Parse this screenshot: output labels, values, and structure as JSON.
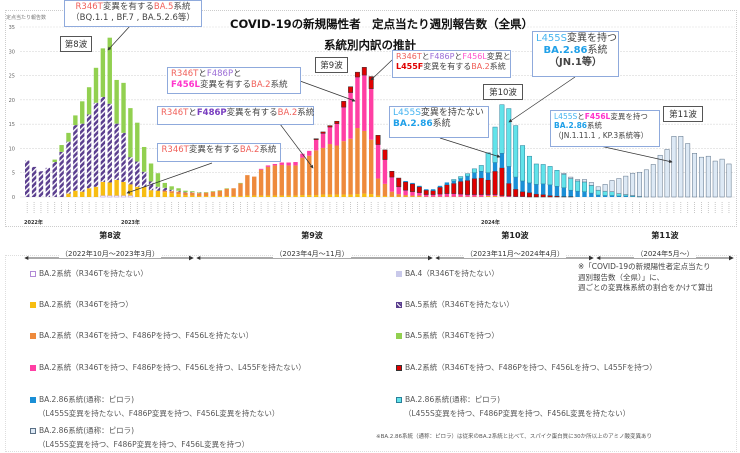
{
  "chart_data": {
    "type": "bar",
    "stacked": true,
    "title": "COVID-19の新規陽性者　定点当たり週別報告数（全県）",
    "subtitle": "系統別内訳の推計",
    "ylabel": "定点当たり報告数",
    "ylim": [
      0,
      35
    ],
    "yticks": [
      0,
      5,
      10,
      15,
      20,
      25,
      30,
      35
    ],
    "grid": true,
    "weeks": 103,
    "year_labels": [
      {
        "text": "2022年",
        "week": 1
      },
      {
        "text": "2023年",
        "week": 15
      },
      {
        "text": "2024年",
        "week": 68
      }
    ],
    "series": [
      {
        "key": "ba2_no",
        "name": "BA.2系統（R346Tを持たない）",
        "color": "#ffffff",
        "stroke": "#b18ad6",
        "start_week": 12,
        "values": [
          0.3,
          0.3,
          0.3,
          0.3,
          0.3
        ]
      },
      {
        "key": "ba4",
        "name": "BA.4（R346Tを持たない）",
        "color": "#c9c9ea",
        "start_week": 1,
        "values": []
      },
      {
        "key": "ba2_r346t",
        "name": "BA.2系統（R346Tを持つ）",
        "color": "#f7bd12",
        "start_week": 7,
        "values": [
          0.7,
          1.3,
          1.1,
          1.8,
          2.1,
          2.8,
          2.7,
          3.2,
          2.8,
          2.3,
          2.1,
          2.1,
          1.4,
          1.3,
          1.0,
          0.8,
          0.6,
          0.4,
          0.3,
          0.2,
          0.2,
          0.2,
          0.2,
          0.2,
          0.2,
          0.2,
          0.3,
          0.3,
          0.3,
          0.3,
          0.3,
          0.3,
          0.3,
          0.3,
          0.4,
          0.4,
          0.4,
          0.5,
          0.5,
          0.5,
          0.5,
          0.5,
          0.6,
          0.7,
          0.6,
          0.3,
          0.2,
          0.1,
          0.1,
          0.1,
          0.1,
          0.1,
          0,
          0,
          0,
          0,
          0,
          0,
          0,
          0,
          0,
          0.1,
          0.1
        ]
      },
      {
        "key": "ba2_f486p",
        "name": "BA.2系統（R346Tを持つ、F486Pを持つ、F456Lを持たない）",
        "color": "#ee8a3c",
        "start_week": 21,
        "values": [
          0.3,
          0.4,
          0.5,
          0.5,
          0.6,
          0.6,
          0.7,
          0.9,
          1.1,
          1.5,
          1.6,
          2.6,
          4.2,
          3.9,
          5.3,
          5.9,
          6.2,
          6.3,
          6.2,
          6.2,
          7.7,
          8.1,
          9.2,
          9.6,
          10.4,
          10.1,
          11.0,
          11.5,
          13.6,
          12.9,
          11.2,
          3.5,
          2.5,
          1.0,
          0.5,
          0.3,
          0.2,
          0.2,
          0.1,
          0.1,
          0.1,
          0.1,
          0.1,
          0.1,
          0.1,
          0.1,
          0.1,
          0.1,
          0.1,
          0.1
        ]
      },
      {
        "key": "ba2_f456l",
        "name": "BA.2系統（R346Tを持つ、F486Pを持つ、F456Lを持つ、L455Fを持たない）",
        "color": "#ff3fa4",
        "start_week": 35,
        "values": [
          0.2,
          0.3,
          0.3,
          0.5,
          0.6,
          0.7,
          0.8,
          1.0,
          2.2,
          3.0,
          3.5,
          4.5,
          7.0,
          9.5,
          10.5,
          11.5,
          10.5,
          7.0,
          5.0,
          3.0,
          1.5,
          1.0,
          0.8,
          0.6,
          0.4,
          0.4,
          0.5,
          0.6,
          0.6,
          0.5,
          0.4,
          0.4,
          0.4,
          0.3,
          0.3,
          0.2,
          0.2,
          0.1,
          0.1
        ]
      },
      {
        "key": "ba2_l455f",
        "name": "BA.2系統（R346Tを持つ、F486Pを持つ、F456Lを持つ、L455Fを持つ）",
        "color": "#e00000",
        "stroke": "#333333",
        "start_week": 43,
        "values": [
          0.2,
          0.3,
          0.3,
          0.5,
          1.2,
          1.2,
          1.0,
          1.6,
          2.5,
          1.9,
          2.0,
          1.2,
          1.8,
          1.7,
          1.6,
          1.2,
          0.9,
          0.8,
          1.4,
          1.8,
          2.1,
          2.6,
          2.9,
          3.3,
          3.4,
          3.0,
          4.8,
          5.7,
          2.6,
          1.5,
          1.0,
          0.9,
          0.6,
          0.5,
          0.3,
          0.2,
          0.1,
          0.1
        ]
      },
      {
        "key": "ba286_no_l455s",
        "name": "BA.2.86系統(通称：ピロラ)",
        "detail": "（L455S変異を持たない、F486P変異を持つ、F456L変異を持たない）",
        "color": "#1a8fd6",
        "start_week": 56,
        "values": [
          0.2,
          0.2,
          0.2,
          0.2,
          0.3,
          0.3,
          0.5,
          0.5,
          0.6,
          0.9,
          1.2,
          1.4,
          1.5,
          1.8,
          3.0,
          3.5,
          2.5,
          2.2,
          2.0,
          2.0,
          2.2,
          2.2,
          2.0,
          1.8,
          1.3,
          1.2,
          1.1,
          0.8,
          0.4,
          0.3,
          0.3,
          0.2,
          0.2,
          0.1
        ]
      },
      {
        "key": "ba286_l455s",
        "name": "BA.2.86系統(通称：ピロラ)",
        "detail": "（L455S変異を持つ、F486P変異を持つ、F456L変異を持たない）",
        "color": "#62e3ea",
        "stroke": "#2a7f9a",
        "start_week": 63,
        "values": [
          0.3,
          0.4,
          0.5,
          0.8,
          1.2,
          4.1,
          7.3,
          10.0,
          11.9,
          10.6,
          7.3,
          5.5,
          4.2,
          4.0,
          3.8,
          3.3,
          2.8,
          2.4,
          2.1,
          2.0,
          1.6,
          1.0,
          0.9,
          0.8,
          0.5,
          0.3,
          0.2,
          0.1
        ]
      },
      {
        "key": "ba286_l455s_f456l",
        "name": "BA.2.86系統(通称：ピロラ)",
        "detail": "（L455S変異を持つ、F486P変異を持つ、F456L変異を持つ）",
        "color": "#dde9f5",
        "stroke": "#5a6f85",
        "start_week": 79,
        "values": [
          0.2,
          0.3,
          0.3,
          0.5,
          0.6,
          0.7,
          1.4,
          2.3,
          3.1,
          3.8,
          4.6,
          5.0,
          5.6,
          6.7,
          8.6,
          9.8,
          12.5,
          12.5,
          11.0,
          9.0,
          8.2,
          8.4,
          7.4,
          7.8,
          6.8
        ]
      },
      {
        "key": "ba5_no",
        "name": "BA.5系統（R346Tを持たない）",
        "color": "#5b3f8f",
        "hatched": true,
        "start_week": 1,
        "values": [
          7.5,
          6.2,
          5.3,
          6.0,
          7.2,
          9.3,
          10.7,
          13.5,
          14.0,
          15.2,
          17.3,
          17.5,
          16.2,
          11.6,
          10.1,
          5.6,
          5.2,
          3.1,
          1.8,
          0.8,
          0.6,
          0.3,
          0.2,
          0.1,
          0.1,
          0.1
        ]
      },
      {
        "key": "ba5_r346t",
        "name": "BA.5系統（R346Tを持つ）",
        "color": "#92d050",
        "start_week": 5,
        "values": [
          0.5,
          1.4,
          1.8,
          2.0,
          4.6,
          5.6,
          7.2,
          10.0,
          13.6,
          9.0,
          10.3,
          10.1,
          8.0,
          5.1,
          3.7,
          2.8,
          1.0,
          0.7,
          0.5,
          0.3,
          0.2,
          0.1,
          0.1,
          0.1,
          0.1,
          0.1,
          0,
          0.1
        ]
      }
    ]
  },
  "annotations": {
    "ba5_r346t": [
      [
        {
          "t": "R346T",
          "c": "#f0605a"
        },
        {
          "t": "変異を有する",
          "c": "#444"
        },
        {
          "t": "BA.5",
          "c": "#f0605a"
        },
        {
          "t": "系統",
          "c": "#444"
        }
      ],
      [
        {
          "t": "（BQ.1.1 , BF.7 , BA.5.2.6等）",
          "c": "#444"
        }
      ]
    ],
    "f456l": [
      [
        {
          "t": "R346T",
          "c": "#f0605a"
        },
        {
          "t": "と",
          "c": "#444"
        },
        {
          "t": "F486P",
          "c": "#9b6bd6"
        },
        {
          "t": "と",
          "c": "#444"
        }
      ],
      [
        {
          "t": "F456L",
          "c": "#ff33cc",
          "b": true
        },
        {
          "t": "変異を有する",
          "c": "#444"
        },
        {
          "t": "BA.2",
          "c": "#f0605a"
        },
        {
          "t": "系統",
          "c": "#444"
        }
      ]
    ],
    "f486p": [
      [
        {
          "t": "R346T",
          "c": "#f0605a"
        },
        {
          "t": "と",
          "c": "#444"
        },
        {
          "t": "F486P",
          "c": "#7a3fc0",
          "b": true
        },
        {
          "t": "変異を有する",
          "c": "#444"
        },
        {
          "t": "BA.2",
          "c": "#f0605a"
        },
        {
          "t": "系統",
          "c": "#444"
        }
      ]
    ],
    "ba2_r346t": [
      [
        {
          "t": "R346T",
          "c": "#f0605a"
        },
        {
          "t": "変異を有する",
          "c": "#444"
        },
        {
          "t": "BA.2",
          "c": "#f0605a"
        },
        {
          "t": "系統",
          "c": "#444"
        }
      ]
    ],
    "l455f": [
      [
        {
          "t": "R346T",
          "c": "#f0605a"
        },
        {
          "t": "と",
          "c": "#444"
        },
        {
          "t": "F486P",
          "c": "#9b6bd6"
        },
        {
          "t": "と",
          "c": "#444"
        },
        {
          "t": "F456L",
          "c": "#ff55cc"
        },
        {
          "t": "変異と",
          "c": "#444"
        }
      ],
      [
        {
          "t": "L455F",
          "c": "#e00000",
          "b": true
        },
        {
          "t": "変異を有する",
          "c": "#444"
        },
        {
          "t": "BA.2",
          "c": "#f0605a"
        },
        {
          "t": "系統",
          "c": "#444"
        }
      ]
    ],
    "l455s": [
      [
        {
          "t": "L455S",
          "c": "#46b4f0"
        },
        {
          "t": "変異を持つ",
          "c": "#444"
        }
      ],
      [
        {
          "t": "BA.2.86",
          "c": "#1fa0e8",
          "b": true
        },
        {
          "t": "系統",
          "c": "#444"
        }
      ],
      [
        {
          "t": "（JN.1等）",
          "c": "#444",
          "b": true
        }
      ]
    ],
    "no_l455s": [
      [
        {
          "t": "L455S",
          "c": "#46b4f0"
        },
        {
          "t": "変異を持たない",
          "c": "#444"
        }
      ],
      [
        {
          "t": "BA.2.86",
          "c": "#1fa0e8",
          "b": true
        },
        {
          "t": "系統",
          "c": "#444"
        }
      ]
    ],
    "l455s_f456l": [
      [
        {
          "t": "L455S",
          "c": "#46b4f0"
        },
        {
          "t": "と",
          "c": "#444"
        },
        {
          "t": "F456L",
          "c": "#ff33cc",
          "b": true
        },
        {
          "t": "変異を持つ",
          "c": "#444"
        }
      ],
      [
        {
          "t": "BA.2.86",
          "c": "#1fa0e8",
          "b": true
        },
        {
          "t": "系統",
          "c": "#444"
        }
      ],
      [
        {
          "t": "（JN.1.11.1 , KP.3系統等）",
          "c": "#444"
        }
      ]
    ]
  },
  "wave_tags": {
    "w8": "第8波",
    "w9": "第9波",
    "w10": "第10波",
    "w11": "第11波"
  },
  "waves": [
    {
      "name": "第8波",
      "period": "（2022年10月～2023年3月）"
    },
    {
      "name": "第9波",
      "period": "（2023年4月～11月）"
    },
    {
      "name": "第10波",
      "period": "（2023年11月～2024年4月）"
    },
    {
      "name": "第11波",
      "period": "（2024年5月～）"
    }
  ],
  "legend": {
    "left": [
      {
        "label": "BA.2系統（R346Tを持たない）",
        "series": 0
      },
      {
        "label": "BA.2系統（R346Tを持つ）",
        "series": 2
      },
      {
        "label": "BA.2系統（R346Tを持つ、F486Pを持つ、F456Lを持たない）",
        "series": 3
      },
      {
        "label": "BA.2系統（R346Tを持つ、F486Pを持つ、F456Lを持つ、L455Fを持たない）",
        "series": 4
      },
      {
        "label": "BA.2.86系統(通称：ピロラ)",
        "sub": "（L455S変異を持たない、F486P変異を持つ、F456L変異を持たない）",
        "series": 6
      },
      {
        "label": "BA.2.86系統(通称：ピロラ)",
        "sub": "（L455S変異を持つ、F486P変異を持つ、F456L変異を持つ）",
        "series": 8
      }
    ],
    "right": [
      {
        "label": "BA.4（R346Tを持たない）",
        "series": 1
      },
      {
        "label": "BA.5系統（R346Tを持たない）",
        "series": 9
      },
      {
        "label": "BA.5系統（R346Tを持つ）",
        "series": 10
      },
      {
        "label": "BA.2系統（R346Tを持つ、F486Pを持つ、F456Lを持つ、L455Fを持つ）",
        "series": 5
      },
      {
        "label": "BA.2.86系統(通称：ピロラ)",
        "sub": "（L455S変異を持つ、F486P変異を持つ、F456L変異を持たない）",
        "series": 7
      }
    ]
  },
  "note": [
    "※「COVID-19の新規陽性者定点当たり",
    "週別報告数（全県）」に、",
    "週ごとの変異株系統の割合をかけて算出"
  ],
  "footnote": "※BA.2.86系統（通称：ピロラ）は従来のBA.2系統と比べて、スパイク蛋白質に30か所以上のアミノ酸変異あり"
}
